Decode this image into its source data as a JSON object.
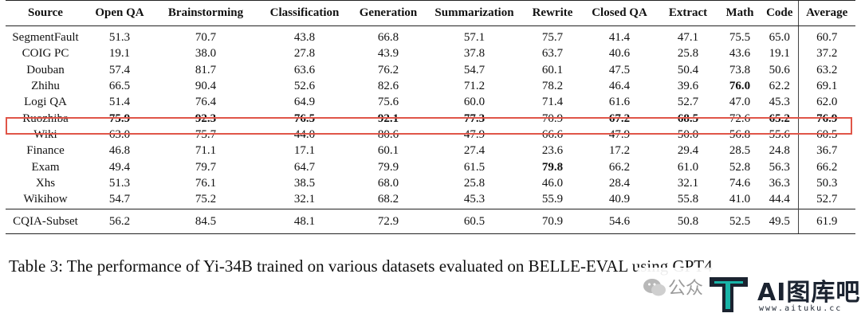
{
  "table": {
    "columns": [
      "Source",
      "Open QA",
      "Brainstorming",
      "Classification",
      "Generation",
      "Summarization",
      "Rewrite",
      "Closed QA",
      "Extract",
      "Math",
      "Code",
      "Average"
    ],
    "rows": [
      {
        "cells": [
          "SegmentFault",
          "51.3",
          "70.7",
          "43.8",
          "66.8",
          "57.1",
          "75.7",
          "41.4",
          "47.1",
          "75.5",
          "65.0",
          "60.7"
        ],
        "bold": []
      },
      {
        "cells": [
          "COIG PC",
          "19.1",
          "38.0",
          "27.8",
          "43.9",
          "37.8",
          "63.7",
          "40.6",
          "25.8",
          "43.6",
          "19.1",
          "37.2"
        ],
        "bold": []
      },
      {
        "cells": [
          "Douban",
          "57.4",
          "81.7",
          "63.6",
          "76.2",
          "54.7",
          "60.1",
          "47.5",
          "50.4",
          "73.8",
          "50.6",
          "63.2"
        ],
        "bold": []
      },
      {
        "cells": [
          "Zhihu",
          "66.5",
          "90.4",
          "52.6",
          "82.6",
          "71.2",
          "78.2",
          "46.4",
          "39.6",
          "76.0",
          "62.2",
          "69.1"
        ],
        "bold": [
          9
        ]
      },
      {
        "cells": [
          "Logi QA",
          "51.4",
          "76.4",
          "64.9",
          "75.6",
          "60.0",
          "71.4",
          "61.6",
          "52.7",
          "47.0",
          "45.3",
          "62.0"
        ],
        "bold": []
      },
      {
        "cells": [
          "Ruozhiba",
          "75.9",
          "92.3",
          "76.5",
          "92.1",
          "77.3",
          "70.9",
          "67.2",
          "68.5",
          "72.6",
          "65.2",
          "76.9"
        ],
        "bold": [
          1,
          2,
          3,
          4,
          5,
          7,
          8,
          10,
          11
        ]
      },
      {
        "cells": [
          "Wiki",
          "63.0",
          "75.7",
          "44.0",
          "80.6",
          "47.9",
          "66.6",
          "47.9",
          "50.0",
          "56.8",
          "55.6",
          "60.5"
        ],
        "bold": []
      },
      {
        "cells": [
          "Finance",
          "46.8",
          "71.1",
          "17.1",
          "60.1",
          "27.4",
          "23.6",
          "17.2",
          "29.4",
          "28.5",
          "24.8",
          "36.7"
        ],
        "bold": []
      },
      {
        "cells": [
          "Exam",
          "49.4",
          "79.7",
          "64.7",
          "79.9",
          "61.5",
          "79.8",
          "66.2",
          "61.0",
          "52.8",
          "56.3",
          "66.2"
        ],
        "bold": [
          6
        ]
      },
      {
        "cells": [
          "Xhs",
          "51.3",
          "76.1",
          "38.5",
          "68.0",
          "25.8",
          "46.0",
          "28.4",
          "32.1",
          "74.6",
          "36.3",
          "50.3"
        ],
        "bold": []
      },
      {
        "cells": [
          "Wikihow",
          "54.7",
          "75.2",
          "32.1",
          "68.2",
          "45.3",
          "55.9",
          "40.9",
          "55.8",
          "41.0",
          "44.4",
          "52.7"
        ],
        "bold": []
      }
    ],
    "summary": {
      "cells": [
        "CQIA-Subset",
        "56.2",
        "84.5",
        "48.1",
        "72.9",
        "60.5",
        "70.9",
        "54.6",
        "50.8",
        "52.5",
        "49.5",
        "61.9"
      ],
      "bold": []
    }
  },
  "caption": "Table 3: The performance of Yi-34B trained on various datasets evaluated on BELLE-EVAL using GPT4",
  "watermark": {
    "text_a": "公众",
    "name": "AI图库吧",
    "url": "www.aituku.cc",
    "colors": {
      "logo_dark": "#1b2330",
      "logo_teal": "#18b4a8"
    }
  },
  "highlight_color": "#e05548"
}
